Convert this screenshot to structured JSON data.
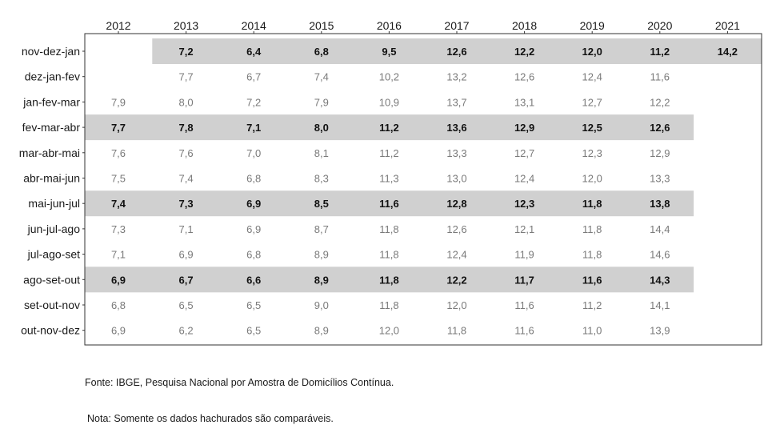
{
  "chart_data": {
    "type": "table",
    "columns": [
      "2012",
      "2013",
      "2014",
      "2015",
      "2016",
      "2017",
      "2018",
      "2019",
      "2020",
      "2021"
    ],
    "rows": [
      {
        "label": "nov-dez-jan",
        "shaded": true,
        "values": [
          "",
          "7,2",
          "6,4",
          "6,8",
          "9,5",
          "12,6",
          "12,2",
          "12,0",
          "11,2",
          "14,2"
        ]
      },
      {
        "label": "dez-jan-fev",
        "shaded": false,
        "values": [
          "",
          "7,7",
          "6,7",
          "7,4",
          "10,2",
          "13,2",
          "12,6",
          "12,4",
          "11,6",
          ""
        ]
      },
      {
        "label": "jan-fev-mar",
        "shaded": false,
        "values": [
          "7,9",
          "8,0",
          "7,2",
          "7,9",
          "10,9",
          "13,7",
          "13,1",
          "12,7",
          "12,2",
          ""
        ]
      },
      {
        "label": "fev-mar-abr",
        "shaded": true,
        "values": [
          "7,7",
          "7,8",
          "7,1",
          "8,0",
          "11,2",
          "13,6",
          "12,9",
          "12,5",
          "12,6",
          ""
        ]
      },
      {
        "label": "mar-abr-mai",
        "shaded": false,
        "values": [
          "7,6",
          "7,6",
          "7,0",
          "8,1",
          "11,2",
          "13,3",
          "12,7",
          "12,3",
          "12,9",
          ""
        ]
      },
      {
        "label": "abr-mai-jun",
        "shaded": false,
        "values": [
          "7,5",
          "7,4",
          "6,8",
          "8,3",
          "11,3",
          "13,0",
          "12,4",
          "12,0",
          "13,3",
          ""
        ]
      },
      {
        "label": "mai-jun-jul",
        "shaded": true,
        "values": [
          "7,4",
          "7,3",
          "6,9",
          "8,5",
          "11,6",
          "12,8",
          "12,3",
          "11,8",
          "13,8",
          ""
        ]
      },
      {
        "label": "jun-jul-ago",
        "shaded": false,
        "values": [
          "7,3",
          "7,1",
          "6,9",
          "8,7",
          "11,8",
          "12,6",
          "12,1",
          "11,8",
          "14,4",
          ""
        ]
      },
      {
        "label": "jul-ago-set",
        "shaded": false,
        "values": [
          "7,1",
          "6,9",
          "6,8",
          "8,9",
          "11,8",
          "12,4",
          "11,9",
          "11,8",
          "14,6",
          ""
        ]
      },
      {
        "label": "ago-set-out",
        "shaded": true,
        "values": [
          "6,9",
          "6,7",
          "6,6",
          "8,9",
          "11,8",
          "12,2",
          "11,7",
          "11,6",
          "14,3",
          ""
        ]
      },
      {
        "label": "set-out-nov",
        "shaded": false,
        "values": [
          "6,8",
          "6,5",
          "6,5",
          "9,0",
          "11,8",
          "12,0",
          "11,6",
          "11,2",
          "14,1",
          ""
        ]
      },
      {
        "label": "out-nov-dez",
        "shaded": false,
        "values": [
          "6,9",
          "6,2",
          "6,5",
          "8,9",
          "12,0",
          "11,8",
          "11,6",
          "11,0",
          "13,9",
          ""
        ]
      }
    ],
    "colors": {
      "shade": "#d0d0d0",
      "border": "#333333",
      "text_plain": "#7a7a7a",
      "text_shaded": "#111111"
    }
  },
  "footer": {
    "source": "Fonte: IBGE, Pesquisa Nacional por Amostra de Domicílios Contínua.",
    "note": "Nota: Somente os dados hachurados são comparáveis."
  }
}
